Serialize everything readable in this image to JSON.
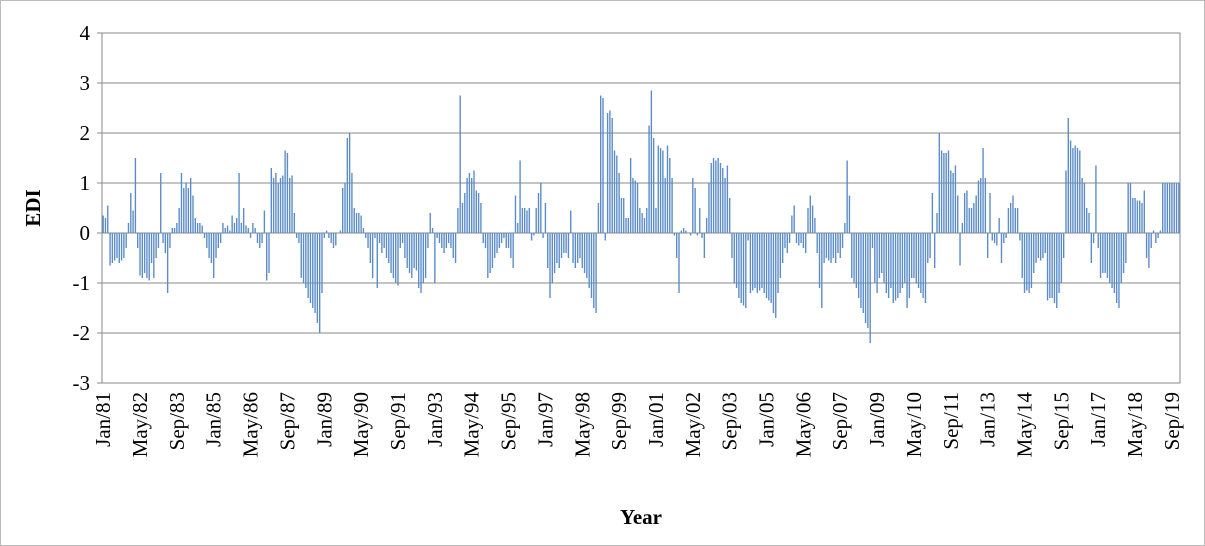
{
  "chart_data": {
    "type": "bar",
    "x_label": "Year",
    "y_label": "EDI",
    "color": "#5b8cc8",
    "grid": true,
    "ylim": [
      -3,
      4
    ],
    "yticks": [
      -3,
      -2,
      -1,
      0,
      1,
      2,
      3,
      4
    ],
    "categories": [
      "Jan/81",
      null,
      null,
      null,
      null,
      null,
      null,
      null,
      null,
      null,
      null,
      null,
      null,
      null,
      null,
      null,
      "May/82",
      null,
      null,
      null,
      null,
      null,
      null,
      null,
      null,
      null,
      null,
      null,
      null,
      null,
      null,
      null,
      "Sep/83",
      null,
      null,
      null,
      null,
      null,
      null,
      null,
      null,
      null,
      null,
      null,
      null,
      null,
      null,
      null,
      "Jan/85",
      null,
      null,
      null,
      null,
      null,
      null,
      null,
      null,
      null,
      null,
      null,
      null,
      null,
      null,
      null,
      "May/86",
      null,
      null,
      null,
      null,
      null,
      null,
      null,
      null,
      null,
      null,
      null,
      null,
      null,
      null,
      null,
      "Sep/87",
      null,
      null,
      null,
      null,
      null,
      null,
      null,
      null,
      null,
      null,
      null,
      null,
      null,
      null,
      null,
      "Jan/89",
      null,
      null,
      null,
      null,
      null,
      null,
      null,
      null,
      null,
      null,
      null,
      null,
      null,
      null,
      null,
      "May/90",
      null,
      null,
      null,
      null,
      null,
      null,
      null,
      null,
      null,
      null,
      null,
      null,
      null,
      null,
      null,
      "Sep/91",
      null,
      null,
      null,
      null,
      null,
      null,
      null,
      null,
      null,
      null,
      null,
      null,
      null,
      null,
      null,
      "Jan/93",
      null,
      null,
      null,
      null,
      null,
      null,
      null,
      null,
      null,
      null,
      null,
      null,
      null,
      null,
      null,
      "May/94",
      null,
      null,
      null,
      null,
      null,
      null,
      null,
      null,
      null,
      null,
      null,
      null,
      null,
      null,
      null,
      "Sep/95",
      null,
      null,
      null,
      null,
      null,
      null,
      null,
      null,
      null,
      null,
      null,
      null,
      null,
      null,
      null,
      "Jan/97",
      null,
      null,
      null,
      null,
      null,
      null,
      null,
      null,
      null,
      null,
      null,
      null,
      null,
      null,
      null,
      "May/98",
      null,
      null,
      null,
      null,
      null,
      null,
      null,
      null,
      null,
      null,
      null,
      null,
      null,
      null,
      null,
      "Sep/99",
      null,
      null,
      null,
      null,
      null,
      null,
      null,
      null,
      null,
      null,
      null,
      null,
      null,
      null,
      null,
      "Jan/01",
      null,
      null,
      null,
      null,
      null,
      null,
      null,
      null,
      null,
      null,
      null,
      null,
      null,
      null,
      null,
      "May/02",
      null,
      null,
      null,
      null,
      null,
      null,
      null,
      null,
      null,
      null,
      null,
      null,
      null,
      null,
      null,
      "Sep/03",
      null,
      null,
      null,
      null,
      null,
      null,
      null,
      null,
      null,
      null,
      null,
      null,
      null,
      null,
      null,
      "Jan/05",
      null,
      null,
      null,
      null,
      null,
      null,
      null,
      null,
      null,
      null,
      null,
      null,
      null,
      null,
      null,
      "May/06",
      null,
      null,
      null,
      null,
      null,
      null,
      null,
      null,
      null,
      null,
      null,
      null,
      null,
      null,
      null,
      "Sep/07",
      null,
      null,
      null,
      null,
      null,
      null,
      null,
      null,
      null,
      null,
      null,
      null,
      null,
      null,
      null,
      "Jan/09",
      null,
      null,
      null,
      null,
      null,
      null,
      null,
      null,
      null,
      null,
      null,
      null,
      null,
      null,
      null,
      "May/10",
      null,
      null,
      null,
      null,
      null,
      null,
      null,
      null,
      null,
      null,
      null,
      null,
      null,
      null,
      null,
      "Sep/11",
      null,
      null,
      null,
      null,
      null,
      null,
      null,
      null,
      null,
      null,
      null,
      null,
      null,
      null,
      null,
      "Jan/13",
      null,
      null,
      null,
      null,
      null,
      null,
      null,
      null,
      null,
      null,
      null,
      null,
      null,
      null,
      null,
      "May/14",
      null,
      null,
      null,
      null,
      null,
      null,
      null,
      null,
      null,
      null,
      null,
      null,
      null,
      null,
      null,
      "Sep/15",
      null,
      null,
      null,
      null,
      null,
      null,
      null,
      null,
      null,
      null,
      null,
      null,
      null,
      null,
      null,
      "Jan/17",
      null,
      null,
      null,
      null,
      null,
      null,
      null,
      null,
      null,
      null,
      null,
      null,
      null,
      null,
      null,
      "May/18",
      null,
      null,
      null,
      null,
      null,
      null,
      null,
      null,
      null,
      null,
      null,
      null,
      null,
      null,
      null,
      "Sep/19",
      null,
      null,
      null
    ],
    "values": [
      0.35,
      0.3,
      0.55,
      -0.65,
      -0.6,
      -0.55,
      -0.5,
      -0.6,
      -0.55,
      -0.5,
      -0.3,
      0.2,
      0.8,
      0.45,
      1.5,
      -0.3,
      -0.85,
      -0.9,
      -0.8,
      -0.9,
      -0.95,
      -0.6,
      -0.9,
      -0.5,
      -0.3,
      1.2,
      -0.2,
      -0.4,
      -1.2,
      -0.3,
      0.1,
      0.1,
      0.2,
      0.5,
      1.2,
      0.9,
      1.0,
      0.9,
      1.1,
      0.75,
      0.3,
      0.2,
      0.2,
      0.15,
      -0.1,
      -0.3,
      -0.5,
      -0.6,
      -0.9,
      -0.5,
      -0.3,
      -0.2,
      0.2,
      0.1,
      0.15,
      0.05,
      0.35,
      0.2,
      0.3,
      1.2,
      0.2,
      0.5,
      0.15,
      0.1,
      -0.1,
      0.2,
      0.1,
      -0.2,
      -0.3,
      -0.2,
      0.45,
      -0.95,
      -0.8,
      1.3,
      1.1,
      1.2,
      1.0,
      1.1,
      1.15,
      1.65,
      1.6,
      1.1,
      1.15,
      0.4,
      -0.1,
      -0.2,
      -0.9,
      -1.0,
      -1.1,
      -1.3,
      -1.4,
      -1.5,
      -1.6,
      -1.8,
      -2.0,
      -1.2,
      -0.1,
      0.05,
      -0.1,
      -0.2,
      -0.3,
      -0.25,
      0.0,
      0.05,
      0.9,
      1.0,
      1.9,
      2.0,
      1.2,
      0.5,
      0.4,
      0.4,
      0.35,
      0.1,
      -0.1,
      -0.3,
      -0.6,
      -0.9,
      -0.1,
      -1.1,
      -0.2,
      -0.4,
      -0.3,
      -0.5,
      -0.6,
      -0.8,
      -0.9,
      -1.0,
      -1.05,
      -0.3,
      -0.2,
      -0.5,
      -0.7,
      -0.8,
      -0.9,
      -0.7,
      -0.75,
      -1.1,
      -1.2,
      -1.0,
      -0.9,
      -0.3,
      0.4,
      0.1,
      -1.0,
      -0.1,
      -0.2,
      -0.3,
      -0.4,
      -0.3,
      -0.2,
      -0.3,
      -0.5,
      -0.6,
      0.5,
      2.75,
      0.6,
      0.8,
      1.1,
      1.2,
      1.1,
      1.25,
      0.85,
      0.8,
      0.6,
      -0.2,
      -0.3,
      -0.9,
      -0.8,
      -0.7,
      -0.5,
      -0.4,
      -0.3,
      -0.2,
      -0.1,
      -0.3,
      -0.3,
      -0.5,
      -0.7,
      0.75,
      0.2,
      1.45,
      0.5,
      0.5,
      0.45,
      0.5,
      -0.15,
      -0.05,
      0.5,
      0.8,
      1.0,
      -0.1,
      0.6,
      -0.7,
      -1.3,
      -1.0,
      -0.8,
      -0.6,
      -0.7,
      -0.5,
      -0.4,
      -0.4,
      -0.5,
      0.45,
      -0.6,
      -0.7,
      -0.6,
      -0.5,
      -0.7,
      -0.8,
      -0.9,
      -1.1,
      -1.3,
      -1.5,
      -1.6,
      0.6,
      2.75,
      2.7,
      -0.15,
      2.4,
      2.45,
      2.3,
      1.65,
      1.55,
      1.2,
      0.7,
      0.7,
      0.3,
      0.3,
      1.5,
      1.1,
      1.05,
      1.0,
      0.5,
      0.4,
      0.3,
      0.5,
      2.15,
      2.85,
      1.9,
      0.5,
      1.75,
      1.7,
      1.65,
      1.1,
      1.75,
      1.5,
      1.1,
      -0.05,
      -0.5,
      -1.2,
      0.05,
      0.1,
      0.05,
      0.0,
      -0.05,
      1.1,
      0.9,
      -0.05,
      0.5,
      -0.1,
      -0.5,
      0.3,
      1.0,
      1.4,
      1.5,
      1.45,
      1.5,
      1.4,
      1.3,
      1.1,
      1.35,
      0.7,
      -0.5,
      -1.0,
      -1.1,
      -1.3,
      -1.4,
      -1.45,
      -1.5,
      -0.15,
      -1.2,
      -1.15,
      -1.1,
      -1.2,
      -1.15,
      -1.1,
      -1.2,
      -1.3,
      -1.35,
      -1.4,
      -1.6,
      -1.7,
      -1.2,
      -0.9,
      -0.6,
      -0.3,
      -0.4,
      -0.2,
      0.35,
      0.55,
      -0.2,
      -0.25,
      -0.2,
      -0.3,
      -0.4,
      0.5,
      0.75,
      0.55,
      0.3,
      -0.4,
      -1.1,
      -1.5,
      -0.6,
      -0.5,
      -0.55,
      -0.6,
      -0.5,
      -0.6,
      -0.4,
      -0.5,
      -0.3,
      0.2,
      1.45,
      0.75,
      -0.9,
      -1.0,
      -1.1,
      -1.3,
      -1.5,
      -1.6,
      -1.8,
      -1.9,
      -2.2,
      -0.3,
      -1.0,
      -1.2,
      -0.9,
      -0.8,
      -1.0,
      -1.2,
      -1.3,
      -1.1,
      -1.4,
      -1.35,
      -1.3,
      -1.2,
      -1.1,
      -1.0,
      -1.5,
      -1.3,
      -0.9,
      -0.9,
      -1.0,
      -1.1,
      -1.2,
      -1.3,
      -1.4,
      -0.6,
      -0.5,
      0.8,
      -0.7,
      0.4,
      2.0,
      1.65,
      1.6,
      1.6,
      1.65,
      1.25,
      1.2,
      1.35,
      0.75,
      -0.65,
      0.2,
      0.8,
      0.85,
      0.5,
      0.5,
      0.6,
      0.75,
      1.05,
      1.1,
      1.7,
      1.1,
      -0.5,
      0.8,
      -0.15,
      -0.2,
      -0.25,
      0.3,
      -0.6,
      -0.2,
      -0.1,
      0.5,
      0.6,
      0.75,
      0.5,
      0.5,
      -0.15,
      -0.9,
      -1.2,
      -1.15,
      -1.2,
      -1.1,
      -0.8,
      -0.6,
      -0.5,
      -0.55,
      -0.5,
      -0.4,
      -1.35,
      -1.3,
      -1.3,
      -1.4,
      -1.5,
      -1.2,
      -1.0,
      -0.5,
      1.25,
      2.3,
      1.85,
      1.7,
      1.75,
      1.7,
      1.65,
      1.1,
      1.0,
      0.5,
      0.4,
      -0.6,
      -0.2,
      1.35,
      -0.3,
      -0.9,
      -0.8,
      -0.8,
      -0.9,
      -1.0,
      -1.1,
      -1.2,
      -1.4,
      -1.5,
      -1.0,
      -0.8,
      -0.6,
      1.0,
      1.0,
      0.7,
      0.7,
      0.65,
      0.65,
      0.6,
      0.85,
      -0.5,
      -0.7,
      -0.3,
      0.05,
      -0.2,
      -0.1,
      0.05,
      1.0,
      1.0,
      1.0,
      1.0,
      1.0,
      1.0,
      1.0,
      1.0
    ]
  }
}
